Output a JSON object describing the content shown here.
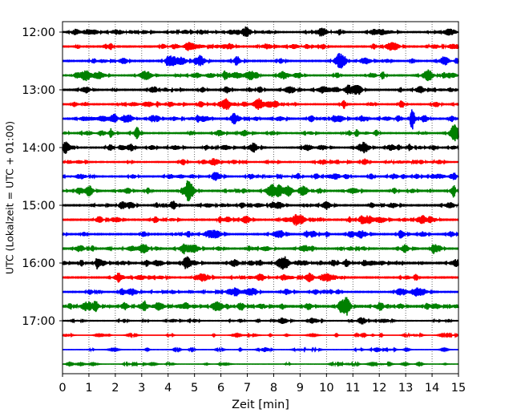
{
  "chart_data": {
    "type": "line",
    "title": "",
    "xlabel": "Zeit  [min]",
    "ylabel": "UTC (Lokalzeit = UTC + 01:00)",
    "xlim": [
      0,
      15
    ],
    "x_ticks": [
      "0",
      "1",
      "2",
      "3",
      "4",
      "5",
      "6",
      "7",
      "8",
      "9",
      "10",
      "11",
      "12",
      "13",
      "14",
      "15"
    ],
    "y_ticks": [
      "12:00",
      "13:00",
      "14:00",
      "15:00",
      "16:00",
      "17:00"
    ],
    "grid": "x-dotted",
    "trace_colors": [
      "#000000",
      "#ff0000",
      "#0000ff",
      "#008000"
    ],
    "traces": [
      {
        "start": "12:00",
        "color": "#000000",
        "amplitude": 0.45
      },
      {
        "start": "12:15",
        "color": "#ff0000",
        "amplitude": 0.5
      },
      {
        "start": "12:30",
        "color": "#0000ff",
        "amplitude": 0.5
      },
      {
        "start": "12:45",
        "color": "#008000",
        "amplitude": 0.45
      },
      {
        "start": "13:00",
        "color": "#000000",
        "amplitude": 0.5
      },
      {
        "start": "13:15",
        "color": "#ff0000",
        "amplitude": 0.45
      },
      {
        "start": "13:30",
        "color": "#0000ff",
        "amplitude": 0.5,
        "events": [
          {
            "minute": 13.25,
            "amp": 2.2
          }
        ]
      },
      {
        "start": "13:45",
        "color": "#008000",
        "amplitude": 0.45
      },
      {
        "start": "14:00",
        "color": "#000000",
        "amplitude": 0.45
      },
      {
        "start": "14:15",
        "color": "#ff0000",
        "amplitude": 0.4
      },
      {
        "start": "14:30",
        "color": "#0000ff",
        "amplitude": 0.45
      },
      {
        "start": "14:45",
        "color": "#008000",
        "amplitude": 0.5
      },
      {
        "start": "15:00",
        "color": "#000000",
        "amplitude": 0.5
      },
      {
        "start": "15:15",
        "color": "#ff0000",
        "amplitude": 0.5
      },
      {
        "start": "15:30",
        "color": "#0000ff",
        "amplitude": 0.5
      },
      {
        "start": "15:45",
        "color": "#008000",
        "amplitude": 0.5
      },
      {
        "start": "16:00",
        "color": "#000000",
        "amplitude": 0.55
      },
      {
        "start": "16:15",
        "color": "#ff0000",
        "amplitude": 0.5
      },
      {
        "start": "16:30",
        "color": "#0000ff",
        "amplitude": 0.45
      },
      {
        "start": "16:45",
        "color": "#008000",
        "amplitude": 0.6
      },
      {
        "start": "17:00",
        "color": "#000000",
        "amplitude": 0.3
      },
      {
        "start": "17:15",
        "color": "#ff0000",
        "amplitude": 0.1
      },
      {
        "start": "17:30",
        "color": "#0000ff",
        "amplitude": 0.15,
        "events": [
          {
            "minute": 4.9,
            "amp": 0.5
          }
        ]
      },
      {
        "start": "17:45",
        "color": "#008000",
        "amplitude": 0.12
      }
    ]
  }
}
